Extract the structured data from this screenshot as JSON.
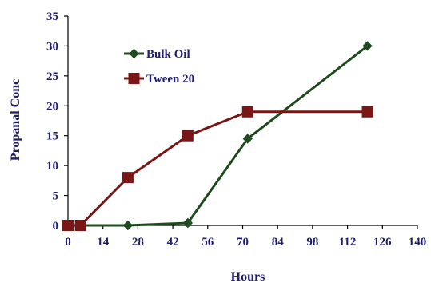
{
  "chart_data": {
    "type": "line",
    "title": "",
    "xlabel": "Hours",
    "ylabel": "Propanal Conc",
    "xlim": [
      0,
      140
    ],
    "ylim": [
      0,
      35
    ],
    "xticks": [
      0,
      14,
      28,
      42,
      56,
      70,
      84,
      98,
      112,
      126,
      140
    ],
    "yticks": [
      0,
      5,
      10,
      15,
      20,
      25,
      30,
      35
    ],
    "grid": false,
    "legend": "top-left",
    "series": [
      {
        "name": "Bulk Oil",
        "color": "#1e4a1e",
        "marker": "diamond",
        "x": [
          0,
          5,
          24,
          48,
          72,
          120
        ],
        "y": [
          0,
          0,
          0,
          0.4,
          14.5,
          30
        ]
      },
      {
        "name": "Tween 20",
        "color": "#7a1616",
        "marker": "square",
        "x": [
          0,
          5,
          24,
          48,
          72,
          120
        ],
        "y": [
          0,
          0,
          8,
          15,
          19,
          19
        ]
      }
    ]
  }
}
